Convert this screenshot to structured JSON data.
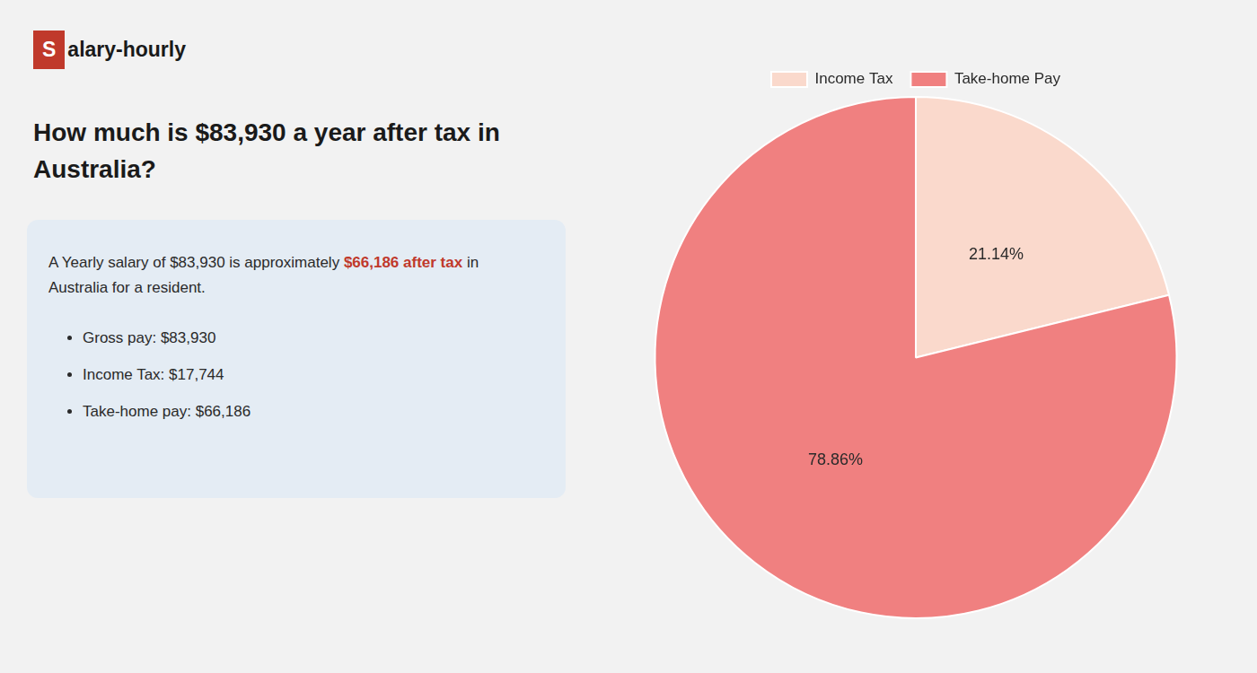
{
  "chart_data": {
    "type": "pie",
    "title": [
      "How much is $83,930 a year after tax in",
      "Australia?"
    ],
    "categories": [
      "Income Tax",
      "Take-home Pay"
    ],
    "values": [
      21.14,
      78.86
    ],
    "value_labels": [
      "21.14%",
      "78.86%"
    ],
    "colors": [
      "#fad9cc",
      "#f08080"
    ],
    "data_labels": true,
    "legend": "top",
    "annotations": [
      [
        {
          "text": "S",
          "color": "#c0392b"
        },
        "alary-hourly"
      ],
      [
        "A Yearly salary of $83,930 is approximately ",
        {
          "text": "$66,186 after tax",
          "color": "#c0392b"
        },
        " in"
      ],
      [
        "Australia for a resident."
      ],
      [
        "Gross pay: $83,930"
      ],
      [
        "Income Tax: $17,744"
      ],
      [
        "Take-home pay: $66,186"
      ]
    ]
  }
}
